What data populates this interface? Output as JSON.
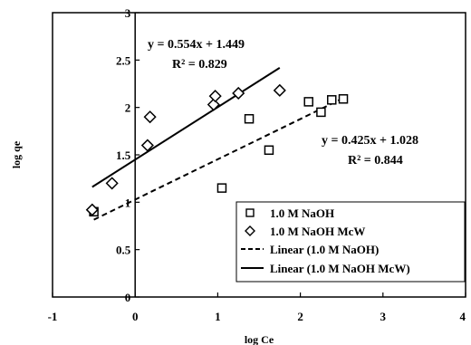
{
  "chart_data": {
    "type": "scatter",
    "xlabel": "log Ce",
    "ylabel": "log qe",
    "xlim": [
      -1,
      4
    ],
    "ylim": [
      0,
      3
    ],
    "x_ticks": [
      "-1",
      "0",
      "1",
      "2",
      "3",
      "4"
    ],
    "y_ticks": [
      "0",
      "0.5",
      "1",
      "1.5",
      "2",
      "2.5",
      "3"
    ],
    "x_tick_values": [
      -1,
      0,
      1,
      2,
      3,
      4
    ],
    "y_tick_values": [
      0,
      0.5,
      1,
      1.5,
      2,
      2.5,
      3
    ],
    "grid": false,
    "legend_position": "bottom-right",
    "series": [
      {
        "name": "1.0 M NaOH",
        "marker": "square",
        "points": [
          [
            -0.5,
            0.9
          ],
          [
            1.05,
            1.15
          ],
          [
            1.38,
            1.88
          ],
          [
            1.62,
            1.55
          ],
          [
            2.1,
            2.06
          ],
          [
            2.25,
            1.95
          ],
          [
            2.38,
            2.08
          ],
          [
            2.52,
            2.09
          ]
        ]
      },
      {
        "name": "1.0 M NaOH McW",
        "marker": "diamond",
        "points": [
          [
            -0.52,
            0.92
          ],
          [
            -0.28,
            1.2
          ],
          [
            0.15,
            1.6
          ],
          [
            0.18,
            1.9
          ],
          [
            0.95,
            2.03
          ],
          [
            0.97,
            2.12
          ],
          [
            1.25,
            2.15
          ],
          [
            1.75,
            2.18
          ]
        ]
      }
    ],
    "fits": [
      {
        "name": "Linear (1.0 M NaOH)",
        "style": "dashed",
        "slope": 0.425,
        "intercept": 1.028,
        "x_range": [
          -0.5,
          2.55
        ],
        "equation": "y = 0.425x + 1.028",
        "r2": "R² = 0.844"
      },
      {
        "name": "Linear (1.0 M NaOH McW)",
        "style": "solid",
        "slope": 0.554,
        "intercept": 1.449,
        "x_range": [
          -0.52,
          1.75
        ],
        "equation": "y = 0.554x + 1.449",
        "r2": "R² = 0.829"
      }
    ],
    "legend": [
      "1.0 M NaOH",
      "1.0 M NaOH McW",
      "Linear (1.0 M NaOH)",
      "Linear (1.0 M NaOH McW)"
    ]
  }
}
